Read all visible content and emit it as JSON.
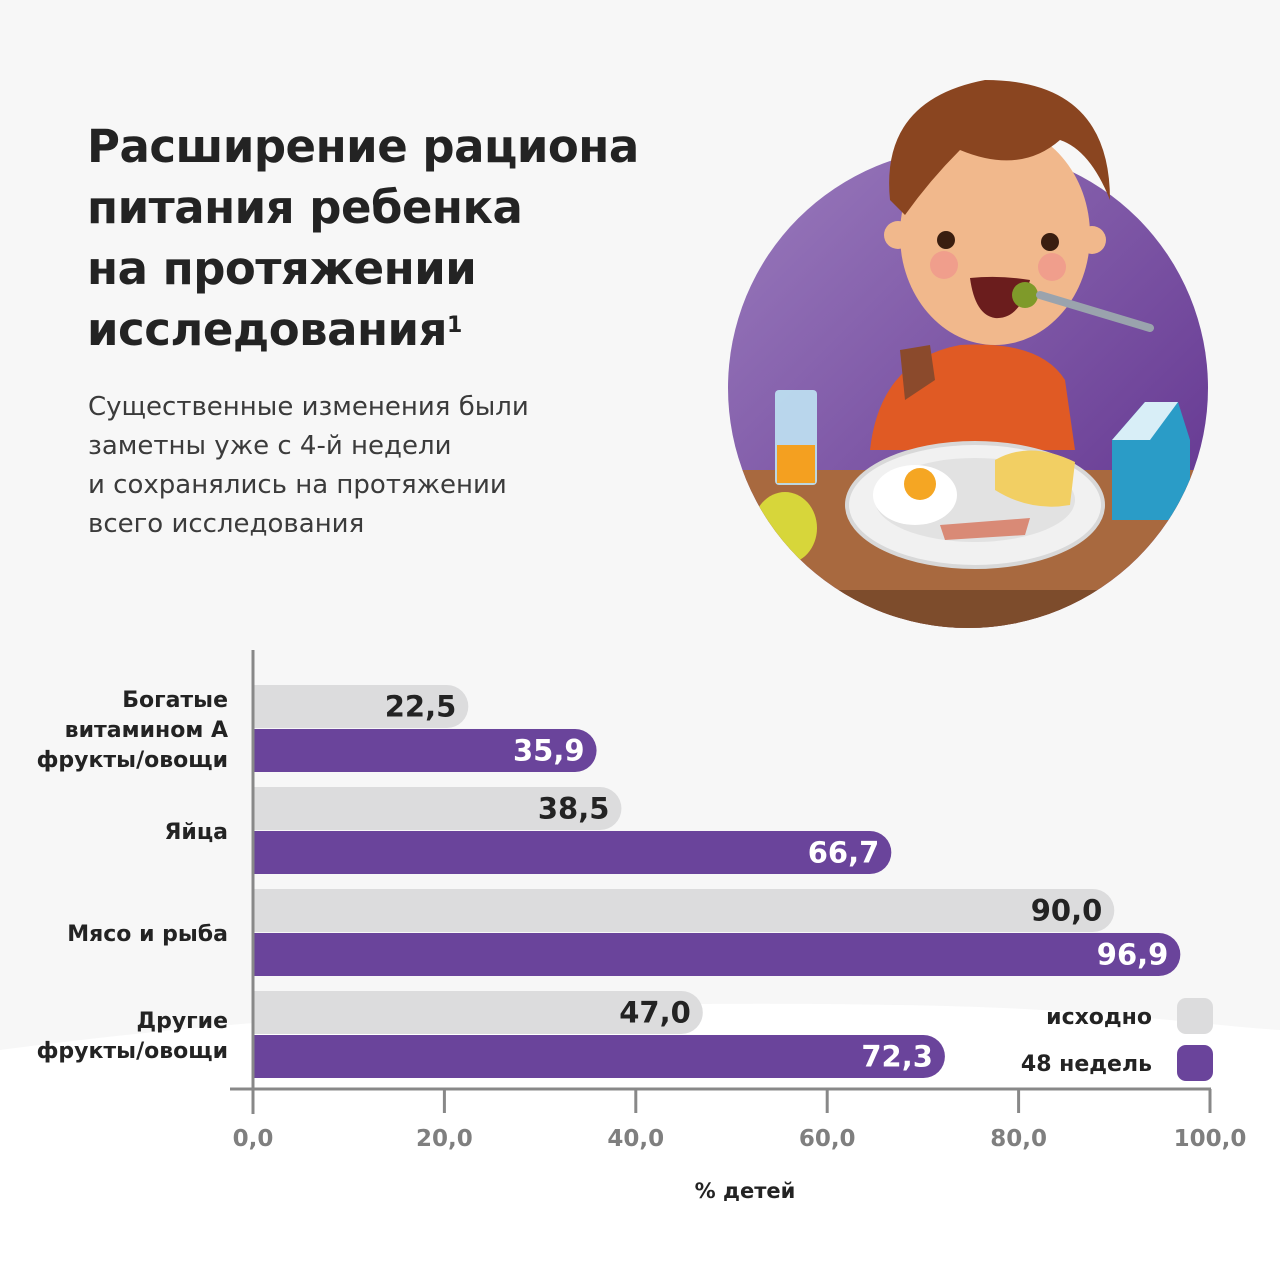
{
  "header": {
    "title_lines": [
      "Расширение рациона",
      "питания ребенка",
      "на протяжении",
      "исследования"
    ],
    "title_footnote": "1",
    "subtitle_lines": [
      "Существенные изменения были",
      "заметны уже с 4-й недели",
      "и сохранялись на протяжении",
      "всего исследования"
    ]
  },
  "illustration": {
    "description_icon": "boy-eating-breakfast-illustration"
  },
  "colors": {
    "baseline": "#dcdcdd",
    "week48": "#6a449b",
    "text": "#232323",
    "axis": "#888888"
  },
  "chart_data": {
    "type": "bar",
    "orientation": "horizontal",
    "categories": [
      [
        "Богатые",
        "витамином А",
        "фрукты/овощи"
      ],
      [
        "Яйца"
      ],
      [
        "Мясо и рыба"
      ],
      [
        "Другие",
        "фрукты/овощи"
      ]
    ],
    "series": [
      {
        "name": "исходно",
        "values": [
          22.5,
          38.5,
          90.0,
          47.0
        ],
        "labels": [
          "22,5",
          "38,5",
          "90,0",
          "47,0"
        ],
        "color": "#dcdcdd"
      },
      {
        "name": "48 недель",
        "values": [
          35.9,
          66.7,
          96.9,
          72.3
        ],
        "labels": [
          "35,9",
          "66,7",
          "96,9",
          "72,3"
        ],
        "color": "#6a449b"
      }
    ],
    "xlabel": "% детей",
    "xlim": [
      0,
      100
    ],
    "xticks": [
      0,
      20,
      40,
      60,
      80,
      100
    ],
    "xtick_labels": [
      "0,0",
      "20,0",
      "40,0",
      "60,0",
      "80,0",
      "100,0"
    ],
    "grid": false,
    "legend_position": "bottom-right"
  }
}
